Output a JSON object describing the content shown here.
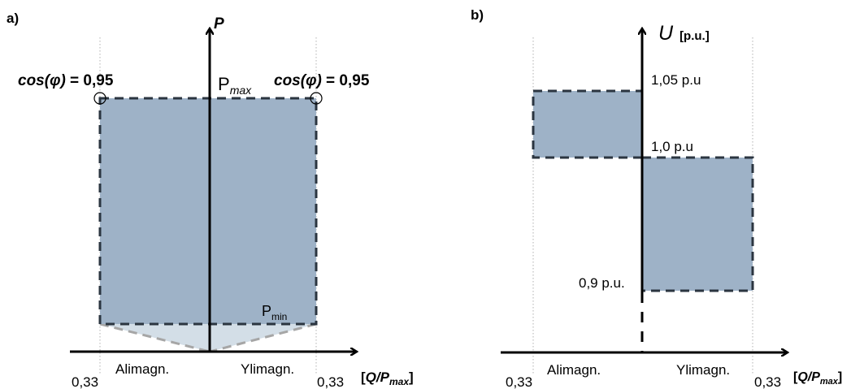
{
  "panel_a": {
    "tag": "a)",
    "axis_p": "P",
    "pmax_main": "P",
    "pmax_sub": "max",
    "pmin_main": "P",
    "pmin_sub": "min",
    "cos_left_fn": "cos(",
    "cos_left_phi": "φ",
    "cos_left_close": ")",
    "cos_left_val": " = 0,95",
    "cos_right_fn": "cos(",
    "cos_right_phi": "φ",
    "cos_right_close": ")",
    "cos_right_val": " = 0,95",
    "under_left": "Alimagn.",
    "over_right": "Ylimagn.",
    "tick_left": "0,33",
    "tick_right": "0,33",
    "xaxis_bracket_open": "[",
    "xaxis_q": "Q/P",
    "xaxis_sub": "max",
    "xaxis_bracket_close": "]"
  },
  "panel_b": {
    "tag": "b)",
    "axis_u": "U",
    "axis_u_unit": "[p.u.]",
    "level_105": "1,05 p.u",
    "level_10": "1,0 p.u",
    "level_09": "0,9 p.u.",
    "under_left": "Alimagn.",
    "over_right": "Ylimagn.",
    "tick_left": "0,33",
    "tick_right": "0,33",
    "xaxis_bracket_open": "[",
    "xaxis_q": "Q/P",
    "xaxis_sub": "max",
    "xaxis_bracket_close": "]"
  },
  "colors": {
    "region_fill": "#9eb2c7",
    "region_light": "#d3dee7",
    "dash_dark": "#2b3540",
    "dash_grey": "#a6a6a6",
    "guide": "#b0b0b0"
  }
}
